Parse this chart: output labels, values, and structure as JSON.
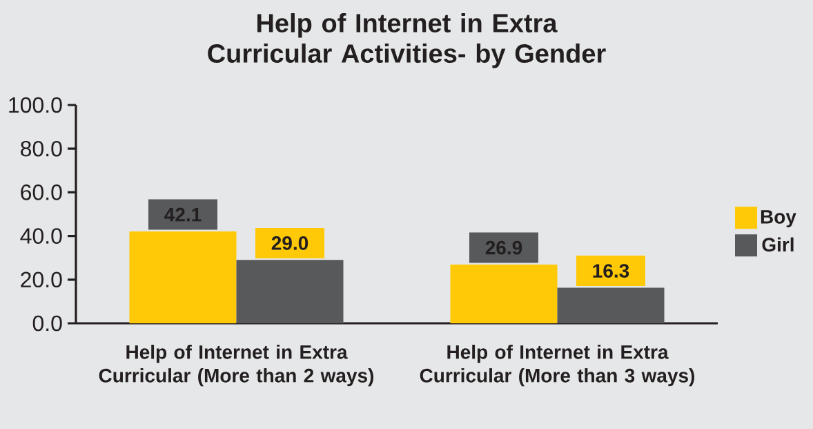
{
  "chart_data": {
    "type": "bar",
    "title": "Help of Internet in Extra Curricular Activities- by Gender",
    "categories": [
      "Help of Internet in Extra Curricular (More than 2 ways)",
      "Help of Internet in Extra Curricular (More than 3 ways)"
    ],
    "series": [
      {
        "name": "Boy",
        "color": "#ffc907",
        "values": [
          42.1,
          26.9
        ],
        "value_labels": [
          "42.1",
          "26.9"
        ]
      },
      {
        "name": "Girl",
        "color": "#58595b",
        "values": [
          29.0,
          16.3
        ],
        "value_labels": [
          "29.0",
          "16.3"
        ]
      }
    ],
    "ylim": [
      0,
      100
    ],
    "yticks": [
      {
        "value": 0,
        "label": "0.0"
      },
      {
        "value": 20,
        "label": "20.0"
      },
      {
        "value": 40,
        "label": "40.0"
      },
      {
        "value": 60,
        "label": "60.0"
      },
      {
        "value": 80,
        "label": "80.0"
      },
      {
        "value": 100,
        "label": "100.0"
      }
    ],
    "grid": false,
    "legend": "right"
  }
}
